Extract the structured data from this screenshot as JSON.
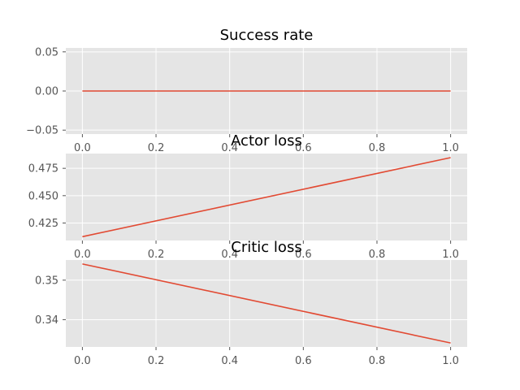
{
  "chart_data": [
    {
      "type": "line",
      "title": "Success rate",
      "xlabel": "",
      "ylabel": "",
      "x": [
        0,
        1
      ],
      "series": [
        {
          "values": [
            0.0,
            0.0
          ],
          "color": "#E24A33"
        }
      ],
      "xlim": [
        -0.045,
        1.045
      ],
      "ylim": [
        -0.055,
        0.055
      ],
      "xticks": [
        0.0,
        0.2,
        0.4,
        0.6,
        0.8,
        1.0
      ],
      "xtick_labels": [
        "0.0",
        "0.2",
        "0.4",
        "0.6",
        "0.8",
        "1.0"
      ],
      "yticks": [
        -0.05,
        0.0,
        0.05
      ],
      "ytick_labels": [
        "−0.05",
        "0.00",
        "0.05"
      ],
      "grid": true
    },
    {
      "type": "line",
      "title": "Actor loss",
      "xlabel": "",
      "ylabel": "",
      "x": [
        0,
        1
      ],
      "series": [
        {
          "values": [
            0.4125,
            0.4848
          ],
          "color": "#E24A33"
        }
      ],
      "xlim": [
        -0.045,
        1.045
      ],
      "ylim": [
        0.409,
        0.4885
      ],
      "xticks": [
        0.0,
        0.2,
        0.4,
        0.6,
        0.8,
        1.0
      ],
      "xtick_labels": [
        "0.0",
        "0.2",
        "0.4",
        "0.6",
        "0.8",
        "1.0"
      ],
      "yticks": [
        0.425,
        0.45,
        0.475
      ],
      "ytick_labels": [
        "0.425",
        "0.450",
        "0.475"
      ],
      "grid": true
    },
    {
      "type": "line",
      "title": "Critic loss",
      "xlabel": "",
      "ylabel": "",
      "x": [
        0,
        1
      ],
      "series": [
        {
          "values": [
            0.3541,
            0.3341
          ],
          "color": "#E24A33"
        }
      ],
      "xlim": [
        -0.045,
        1.045
      ],
      "ylim": [
        0.3331,
        0.3551
      ],
      "xticks": [
        0.0,
        0.2,
        0.4,
        0.6,
        0.8,
        1.0
      ],
      "xtick_labels": [
        "0.0",
        "0.2",
        "0.4",
        "0.6",
        "0.8",
        "1.0"
      ],
      "yticks": [
        0.34,
        0.35
      ],
      "ytick_labels": [
        "0.34",
        "0.35"
      ],
      "grid": true
    }
  ],
  "style": {
    "axes_background": "#E5E5E5",
    "grid_color": "#FFFFFF",
    "text_color": "#000000",
    "tick_color": "#555555"
  }
}
